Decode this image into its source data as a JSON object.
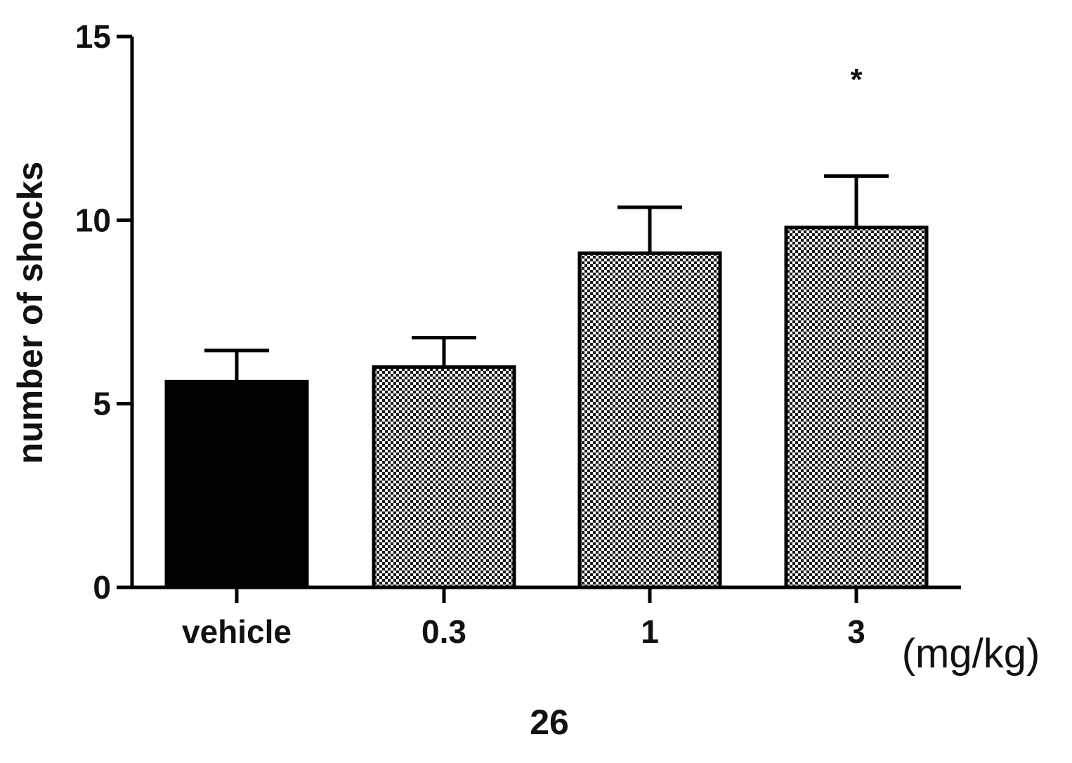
{
  "chart_data": {
    "type": "bar",
    "categories": [
      "vehicle",
      "0.3",
      "1",
      "3"
    ],
    "values": [
      5.6,
      6.0,
      9.1,
      9.8
    ],
    "errors": [
      0.85,
      0.8,
      1.25,
      1.4
    ],
    "annotations": [
      "",
      "",
      "",
      "*"
    ],
    "ylabel": "number of shocks",
    "xlabel": "26",
    "x_unit": "(mg/kg)",
    "ylim": [
      0,
      15
    ],
    "yticks": [
      0,
      5,
      10,
      15
    ],
    "grid": false,
    "legend": "none",
    "fills": [
      "solid",
      "checker",
      "checker",
      "checker"
    ],
    "colors": {
      "solid": "#000000",
      "checker_dark": "#1a1a1a",
      "checker_light": "#ffffff",
      "axis": "#000000"
    }
  }
}
